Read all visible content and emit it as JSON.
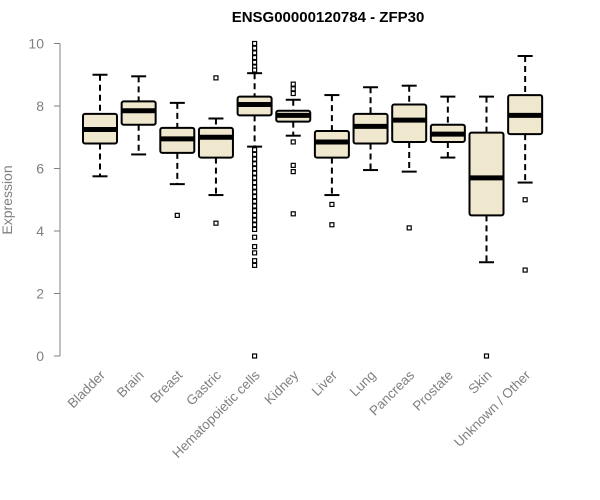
{
  "chart_data": {
    "type": "boxplot",
    "title": "ENSG00000120784 - ZFP30",
    "ylabel": "Expression",
    "xlabel": "",
    "ylim": [
      0,
      10
    ],
    "yticks": [
      0,
      2,
      4,
      6,
      8,
      10
    ],
    "grid": false,
    "box_fill": "#efe8cf",
    "categories": [
      "Bladder",
      "Brain",
      "Breast",
      "Gastric",
      "Hematopoietic cells",
      "Kidney",
      "Liver",
      "Lung",
      "Pancreas",
      "Prostate",
      "Skin",
      "Unknown / Other"
    ],
    "series": [
      {
        "category": "Bladder",
        "q1": 6.8,
        "median": 7.25,
        "q3": 7.75,
        "whisker_low": 5.75,
        "whisker_high": 9.0,
        "outliers": []
      },
      {
        "category": "Brain",
        "q1": 7.4,
        "median": 7.85,
        "q3": 8.15,
        "whisker_low": 6.45,
        "whisker_high": 8.95,
        "outliers": []
      },
      {
        "category": "Breast",
        "q1": 6.5,
        "median": 6.95,
        "q3": 7.3,
        "whisker_low": 5.5,
        "whisker_high": 8.1,
        "outliers": [
          4.5
        ]
      },
      {
        "category": "Gastric",
        "q1": 6.35,
        "median": 7.0,
        "q3": 7.3,
        "whisker_low": 5.15,
        "whisker_high": 7.6,
        "outliers": [
          8.9,
          4.25
        ]
      },
      {
        "category": "Hematopoietic cells",
        "q1": 7.7,
        "median": 8.05,
        "q3": 8.3,
        "whisker_low": 6.7,
        "whisker_high": 9.05,
        "outliers": [
          10.0,
          9.85,
          9.7,
          9.55,
          9.4,
          9.25,
          9.15,
          6.6,
          6.45,
          6.3,
          6.15,
          6.0,
          5.85,
          5.7,
          5.55,
          5.4,
          5.25,
          5.1,
          4.95,
          4.8,
          4.65,
          4.5,
          4.35,
          4.2,
          4.05,
          3.8,
          3.5,
          3.3,
          3.05,
          2.9,
          0.0
        ]
      },
      {
        "category": "Kidney",
        "q1": 7.5,
        "median": 7.7,
        "q3": 7.85,
        "whisker_low": 7.05,
        "whisker_high": 8.2,
        "outliers": [
          8.7,
          8.55,
          8.4,
          6.85,
          6.1,
          5.9,
          4.55
        ]
      },
      {
        "category": "Liver",
        "q1": 6.35,
        "median": 6.85,
        "q3": 7.2,
        "whisker_low": 5.15,
        "whisker_high": 8.35,
        "outliers": [
          4.85,
          4.2
        ]
      },
      {
        "category": "Lung",
        "q1": 6.8,
        "median": 7.35,
        "q3": 7.75,
        "whisker_low": 5.95,
        "whisker_high": 8.6,
        "outliers": []
      },
      {
        "category": "Pancreas",
        "q1": 6.85,
        "median": 7.55,
        "q3": 8.05,
        "whisker_low": 5.9,
        "whisker_high": 8.65,
        "outliers": [
          4.1
        ]
      },
      {
        "category": "Prostate",
        "q1": 6.85,
        "median": 7.1,
        "q3": 7.4,
        "whisker_low": 6.35,
        "whisker_high": 8.3,
        "outliers": []
      },
      {
        "category": "Skin",
        "q1": 4.5,
        "median": 5.7,
        "q3": 7.15,
        "whisker_low": 3.0,
        "whisker_high": 8.3,
        "outliers": [
          0.0
        ]
      },
      {
        "category": "Unknown / Other",
        "q1": 7.1,
        "median": 7.7,
        "q3": 8.35,
        "whisker_low": 5.55,
        "whisker_high": 9.6,
        "outliers": [
          5.0,
          2.75
        ]
      }
    ]
  }
}
